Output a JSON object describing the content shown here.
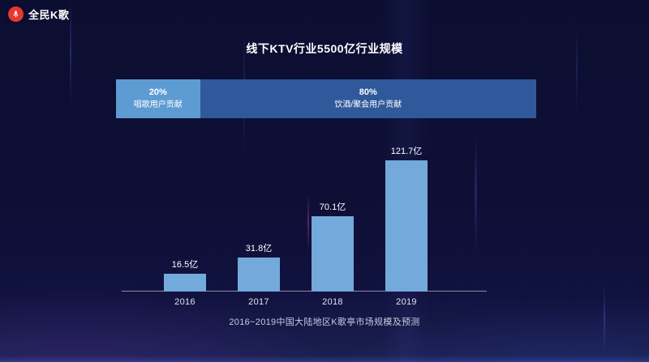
{
  "brand": {
    "name": "全民K歌"
  },
  "title": "线下KTV行业5500亿行业规模",
  "caption": "2016~2019中国大陆地区K歌亭市场规模及预测",
  "colors": {
    "background_top": "#0c0e31",
    "background_bottom": "#1b2152",
    "brand_red": "#e7382d",
    "segment_light_blue": "#5d9bd3",
    "segment_dark_blue": "#30599b",
    "bar_fill": "#74a9dc",
    "axis_line": "#9ba0b5",
    "text_primary": "#ffffff",
    "text_secondary": "#c6cbdc"
  },
  "chart_data": [
    {
      "type": "bar",
      "variant": "horizontal-stacked",
      "title": "线下KTV行业5500亿行业规模",
      "unit": "%",
      "legend": "none",
      "segments": [
        {
          "percent_label": "20%",
          "label": "唱歌用户贡献",
          "value": 20
        },
        {
          "percent_label": "80%",
          "label": "饮酒/聚会用户贡献",
          "value": 80
        }
      ]
    },
    {
      "type": "bar",
      "title": "2016~2019中国大陆地区K歌亭市场规模及预测",
      "categories": [
        "2016",
        "2017",
        "2018",
        "2019"
      ],
      "values": [
        16.5,
        31.8,
        70.1,
        121.7
      ],
      "value_labels": [
        "16.5亿",
        "31.8亿",
        "70.1亿",
        "121.7亿"
      ],
      "unit": "亿",
      "xlabel": "",
      "ylabel": "",
      "ylim": [
        0,
        130
      ],
      "grid": false,
      "legend": "none"
    }
  ]
}
